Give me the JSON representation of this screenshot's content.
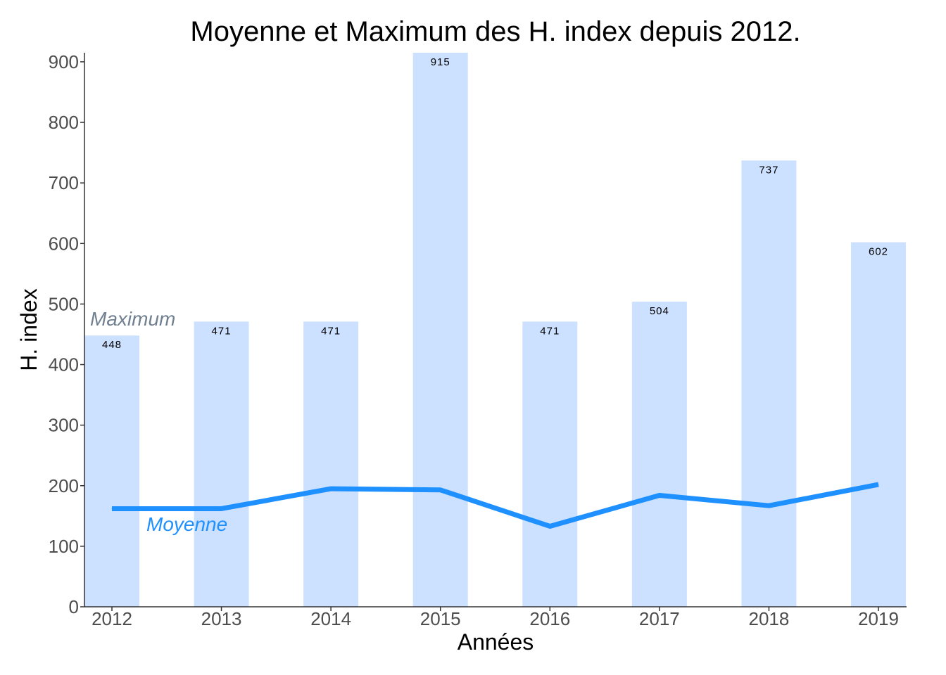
{
  "chart_data": {
    "type": "bar",
    "title": "Moyenne et Maximum des H. index depuis 2012.",
    "xlabel": "Années",
    "ylabel": "H. index",
    "categories": [
      "2012",
      "2013",
      "2014",
      "2015",
      "2016",
      "2017",
      "2018",
      "2019"
    ],
    "ylim": [
      0,
      915
    ],
    "yticks": [
      0,
      100,
      200,
      300,
      400,
      500,
      600,
      700,
      800,
      900
    ],
    "grid": false,
    "series": [
      {
        "name": "Maximum",
        "type": "bar",
        "color": "#cce0ff",
        "label_color": "#708090",
        "values": [
          448,
          471,
          471,
          915,
          471,
          504,
          737,
          602
        ],
        "data_labels": [
          "448",
          "471",
          "471",
          "915",
          "471",
          "504",
          "737",
          "602"
        ]
      },
      {
        "name": "Moyenne",
        "type": "line",
        "color": "#1e90ff",
        "label_color": "#1e90ff",
        "values": [
          162,
          162,
          195,
          193,
          133,
          184,
          167,
          202
        ]
      }
    ]
  }
}
